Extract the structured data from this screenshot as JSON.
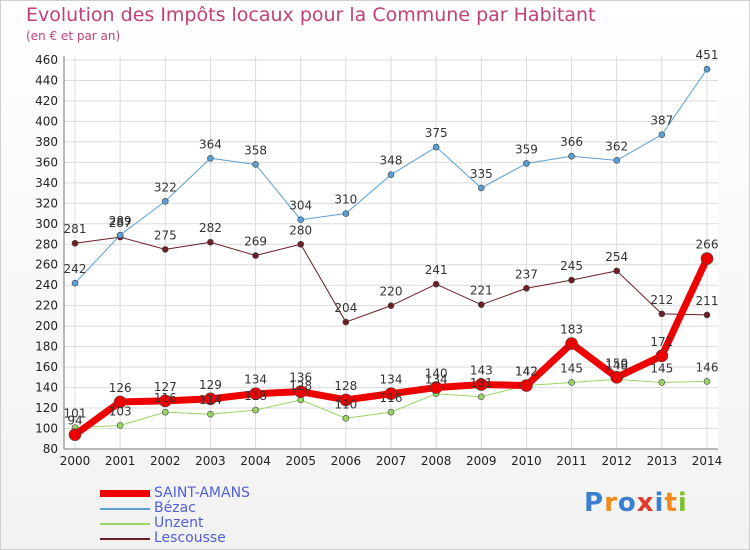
{
  "title": "Evolution des Impôts locaux pour la Commune par Habitant",
  "subtitle": "(en € et par an)",
  "brand": {
    "text": "Proxiti",
    "letters": [
      {
        "ch": "P",
        "color": "#3a7fd0"
      },
      {
        "ch": "r",
        "color": "#f08a1a"
      },
      {
        "ch": "o",
        "color": "#3a7fd0"
      },
      {
        "ch": "x",
        "color": "#e03a2a"
      },
      {
        "ch": "i",
        "color": "#3a7fd0"
      },
      {
        "ch": "t",
        "color": "#f08a1a"
      },
      {
        "ch": "i",
        "color": "#7fc030"
      }
    ]
  },
  "chart_data": {
    "type": "line",
    "categories": [
      "2000",
      "2001",
      "2002",
      "2003",
      "2004",
      "2005",
      "2006",
      "2007",
      "2008",
      "2009",
      "2010",
      "2011",
      "2012",
      "2013",
      "2014"
    ],
    "ylim": [
      80,
      460
    ],
    "yticks": [
      80,
      100,
      120,
      140,
      160,
      180,
      200,
      220,
      240,
      260,
      280,
      300,
      320,
      340,
      360,
      380,
      400,
      420,
      440,
      460
    ],
    "grid": true,
    "legend_position": "bottom-left",
    "series": [
      {
        "name": "Lescousse",
        "color": "#6b1f24",
        "width": 1,
        "marker": 3,
        "values": [
          281,
          287,
          275,
          282,
          269,
          280,
          204,
          220,
          241,
          221,
          237,
          245,
          254,
          212,
          211
        ]
      },
      {
        "name": "Bézac",
        "color": "#5a9fd6",
        "width": 1,
        "marker": 3,
        "values": [
          242,
          289,
          322,
          364,
          358,
          304,
          310,
          348,
          375,
          335,
          359,
          366,
          362,
          387,
          451
        ]
      },
      {
        "name": "Unzent",
        "color": "#99d466",
        "width": 1,
        "marker": 3,
        "values": [
          101,
          103,
          116,
          114,
          118,
          128,
          110,
          116,
          134,
          131,
          142,
          145,
          148,
          145,
          146
        ]
      },
      {
        "name": "SAINT-AMANS",
        "color": "#ee0000",
        "width": 7,
        "marker": 6,
        "values": [
          94,
          126,
          127,
          129,
          134,
          136,
          128,
          134,
          140,
          143,
          142,
          183,
          150,
          171,
          266
        ]
      }
    ],
    "data_labels": [
      [
        "281",
        "287",
        "275",
        "282",
        "269",
        "280",
        "204",
        "220",
        "241",
        "221",
        "237",
        "245",
        "254",
        "212",
        "211"
      ],
      [
        "242",
        "289",
        "322",
        "364",
        "358",
        "304",
        "310",
        "348",
        "375",
        "335",
        "359",
        "366",
        "362",
        "387",
        "451"
      ],
      [
        "101",
        "103",
        "116",
        "114",
        "118",
        "128",
        "110",
        "116",
        "134",
        "131",
        "142",
        "145",
        "148",
        "145",
        "146"
      ],
      [
        "94",
        "126",
        "127",
        "129",
        "134",
        "136",
        "128",
        "134",
        "140",
        "143",
        "142",
        "183",
        "150",
        "171",
        "266"
      ]
    ],
    "legend_order": [
      "SAINT-AMANS",
      "Bézac",
      "Unzent",
      "Lescousse"
    ]
  }
}
